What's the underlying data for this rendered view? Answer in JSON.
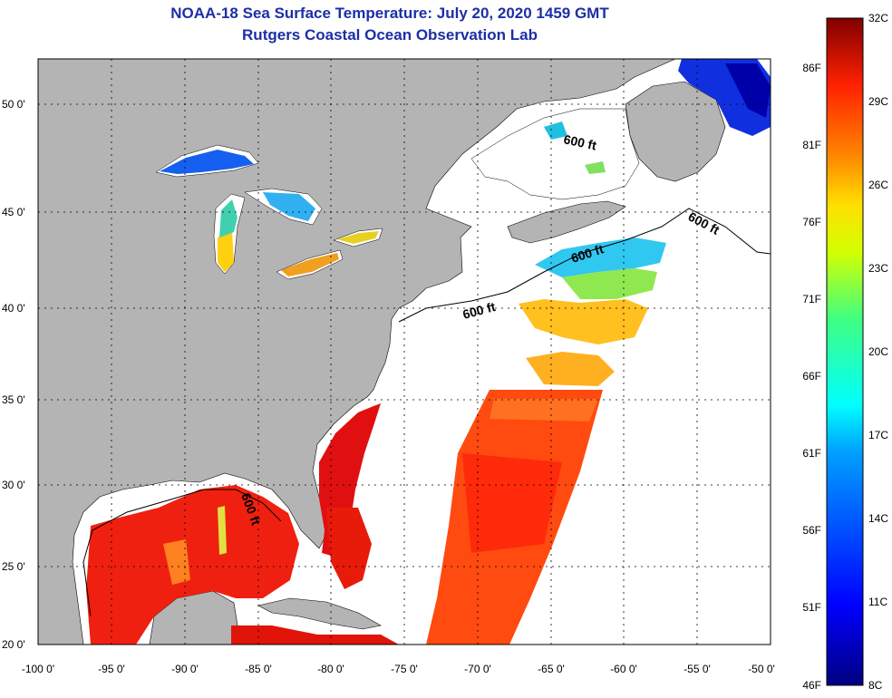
{
  "title": "NOAA-18 Sea Surface Temperature:  July 20, 2020 1459 GMT",
  "subtitle": "Rutgers Coastal Ocean Observation Lab",
  "axes": {
    "lat_labels": [
      "50 0'",
      "45 0'",
      "40 0'",
      "35 0'",
      "30 0'",
      "25 0'",
      "20 0'"
    ],
    "lon_labels": [
      "-100 0'",
      "-95 0'",
      "-90 0'",
      "-85 0'",
      "-80 0'",
      "-75 0'",
      "-70 0'",
      "-65 0'",
      "-60 0'",
      "-55 0'",
      "-50 0'"
    ]
  },
  "isobath_labels": [
    "600 ft",
    "600 ft",
    "600 ft",
    "600 ft",
    "600 ft"
  ],
  "colorbar": {
    "celsius": [
      "32C",
      "29C",
      "26C",
      "23C",
      "20C",
      "17C",
      "14C",
      "11C",
      "8C"
    ],
    "fahrenheit": [
      "86F",
      "81F",
      "76F",
      "71F",
      "66F",
      "61F",
      "56F",
      "51F",
      "46F"
    ],
    "min_c": 8,
    "max_c": 32
  },
  "colors": {
    "land": "#b4b4b4",
    "ocean_nodata": "#ffffff",
    "title": "#1c2fa6"
  }
}
